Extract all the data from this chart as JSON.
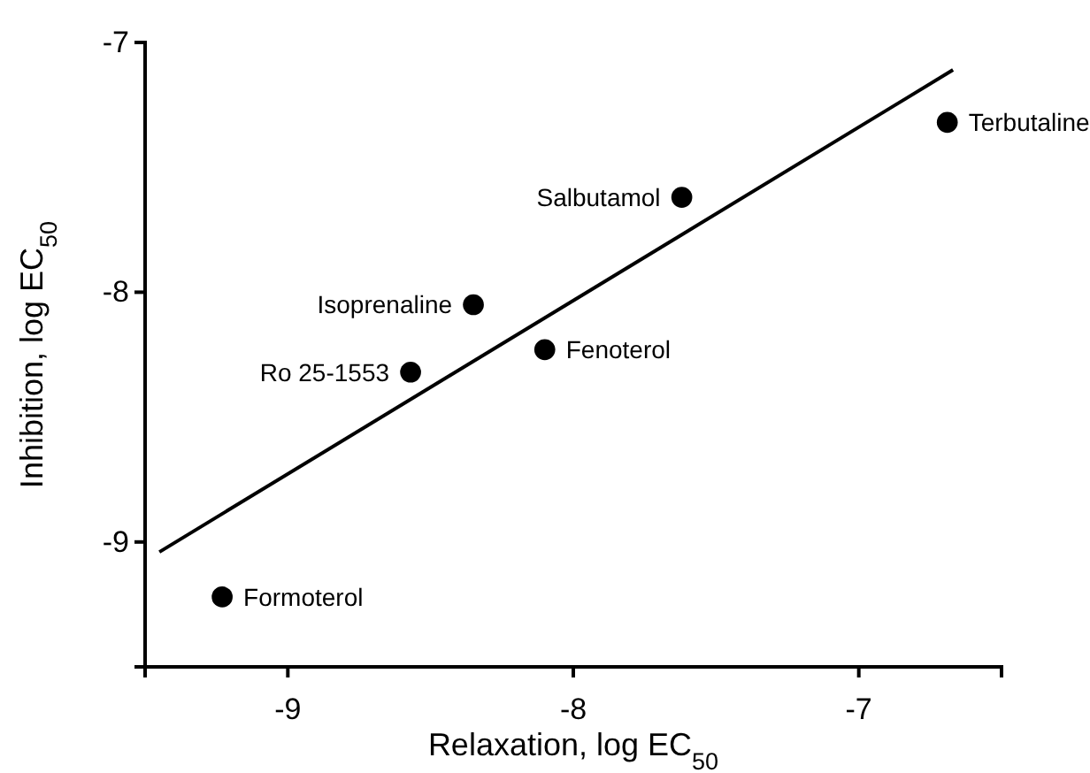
{
  "chart_data": {
    "type": "scatter",
    "xlabel": "Relaxation, log EC$_{50}$",
    "ylabel": "Inhibition, log EC$_{50}$",
    "xlim": [
      -9.5,
      -6.5
    ],
    "ylim": [
      -9.5,
      -7
    ],
    "xticks": [
      -9,
      -8,
      -7
    ],
    "yticks": [
      -9,
      -8,
      -7
    ],
    "grid": false,
    "series": [
      {
        "marker": "circle",
        "color": "#000000",
        "x": [
          -6.69,
          -7.62,
          -8.35,
          -8.1,
          -8.57,
          -9.23
        ],
        "values": [
          -7.32,
          -7.62,
          -8.05,
          -8.23,
          -8.32,
          -9.22
        ]
      },
      {
        "type": "line",
        "color": "#000000",
        "x": [
          -9.45,
          -6.67
        ],
        "values": [
          -9.04,
          -7.11
        ]
      }
    ],
    "annotations": [
      {
        "text": "Terbutaline",
        "x": -6.69,
        "y": -7.32
      },
      {
        "text": "Salbutamol",
        "x": -7.62,
        "y": -7.62
      },
      {
        "text": "Isoprenaline",
        "x": -8.35,
        "y": -8.05
      },
      {
        "text": "Fenoterol",
        "x": -8.1,
        "y": -8.23
      },
      {
        "text": "Ro 25-1553",
        "x": -8.57,
        "y": -8.32
      },
      {
        "text": "Formoterol",
        "x": -9.23,
        "y": -9.22
      }
    ]
  }
}
